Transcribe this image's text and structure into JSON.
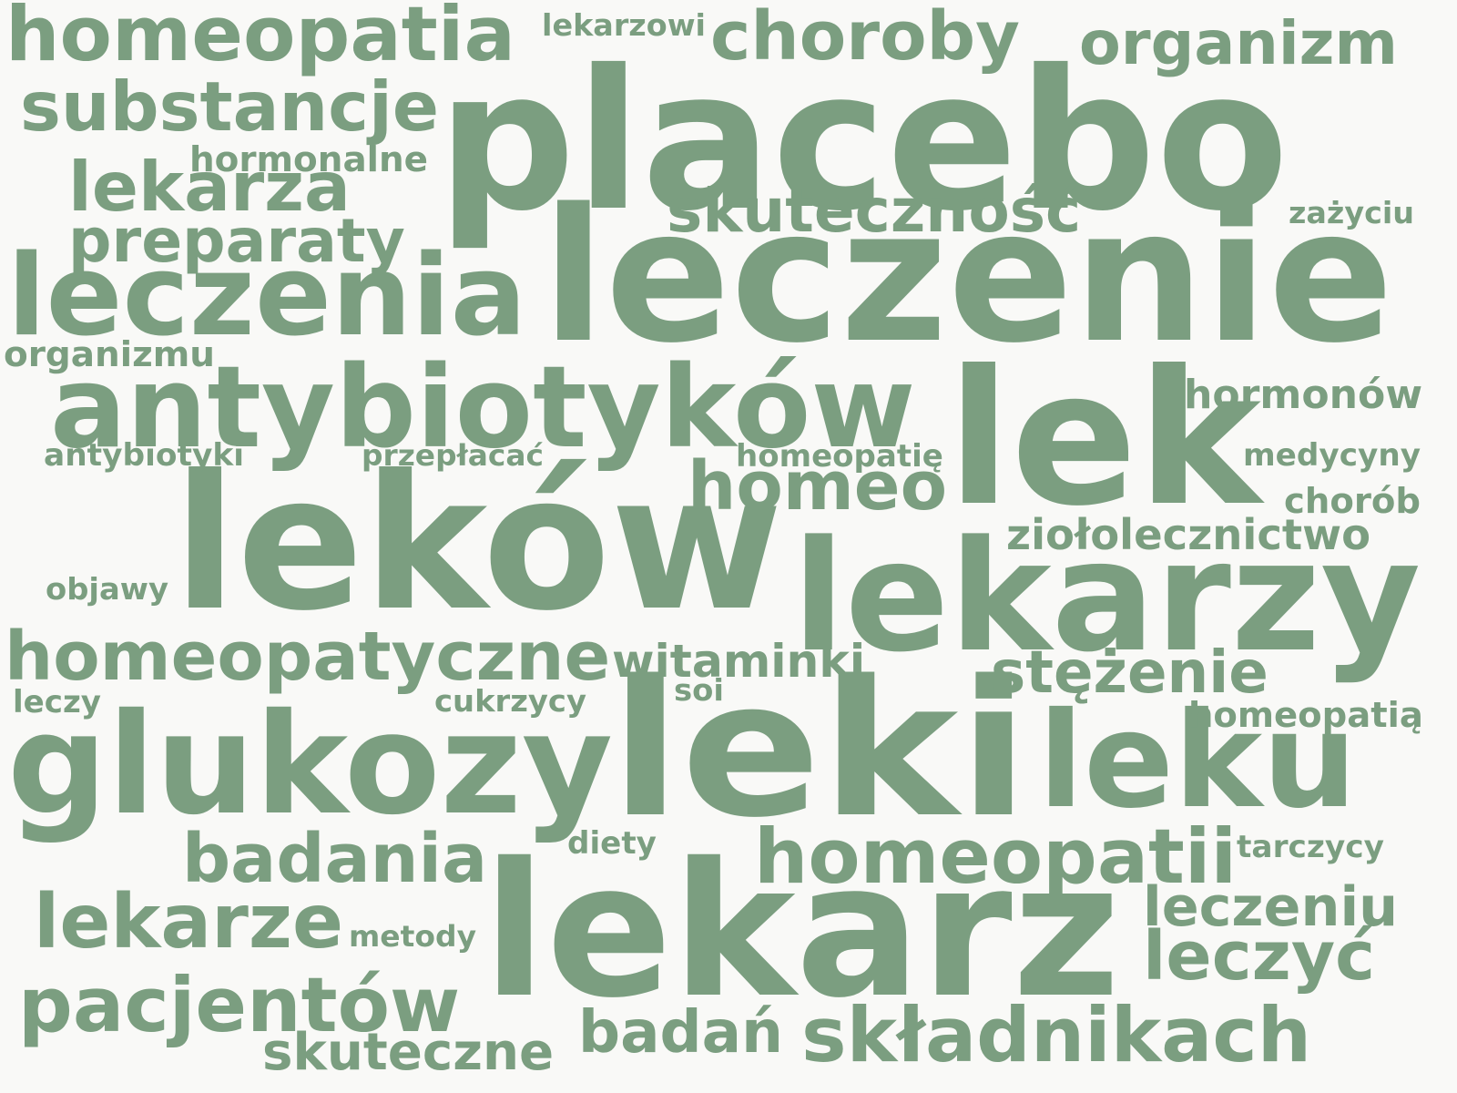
{
  "cloud": {
    "color": "#7b9e80",
    "background": "#f9f9f7",
    "words": [
      "placebo",
      "leczenie",
      "lek",
      "leków",
      "lekarzy",
      "leki",
      "leku",
      "lekarz",
      "leczenia",
      "antybiotyków",
      "glukozy",
      "homeopatia",
      "choroby",
      "organizm",
      "substancje",
      "lekarza",
      "preparaty",
      "skuteczność",
      "homeo",
      "homeopatyczne",
      "stężenie",
      "homeopatii",
      "badania",
      "lekarze",
      "pacjentów",
      "składnikach",
      "badań",
      "skuteczne",
      "leczeniu",
      "leczyć",
      "witaminki",
      "lekarzowi",
      "hormonalne",
      "zażyciu",
      "organizmu",
      "hormonów",
      "antybiotyki",
      "przepłacać",
      "homeopatię",
      "medycyny",
      "chorób",
      "ziołolecznictwo",
      "objawy",
      "leczy",
      "cukrzycy",
      "soi",
      "homeopatią",
      "diety",
      "tarczycy",
      "metody"
    ]
  }
}
